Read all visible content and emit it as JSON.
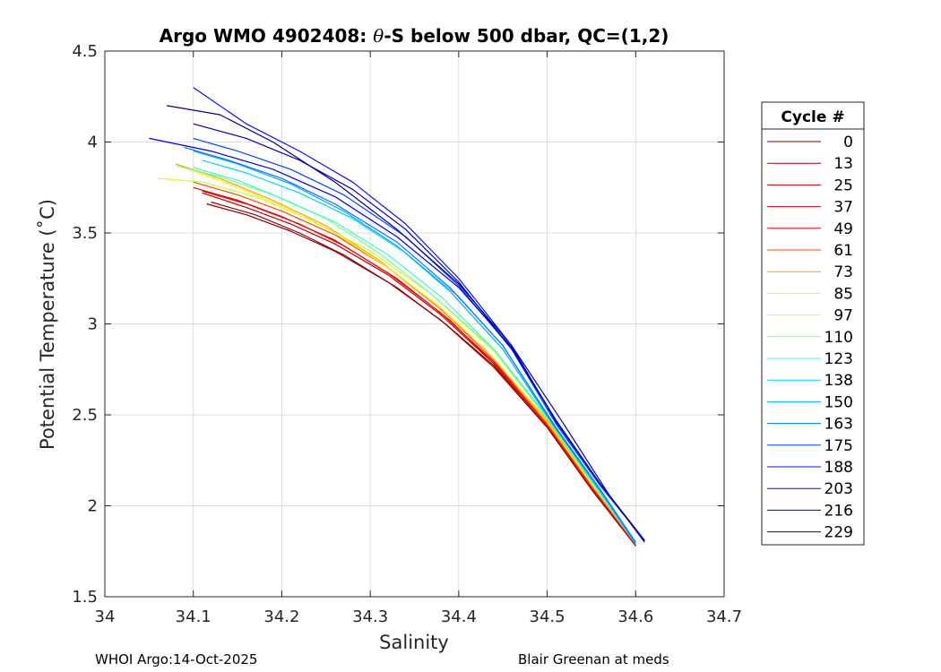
{
  "chart_data": {
    "type": "line",
    "title_prefix": "Argo WMO 4902408: ",
    "title_theta": "θ",
    "title_suffix": "-S below 500 dbar,  QC=(1,2)",
    "xlabel": "Salinity",
    "ylabel": "Potential Temperature (˚C)",
    "xlim": [
      34.0,
      34.7
    ],
    "ylim": [
      1.5,
      4.5
    ],
    "xticks": [
      34,
      34.1,
      34.2,
      34.3,
      34.4,
      34.5,
      34.6,
      34.7
    ],
    "xtick_labels": [
      "34",
      "34.1",
      "34.2",
      "34.3",
      "34.4",
      "34.5",
      "34.6",
      "34.7"
    ],
    "yticks": [
      1.5,
      2,
      2.5,
      3,
      3.5,
      4,
      4.5
    ],
    "ytick_labels": [
      "1.5",
      "2",
      "2.5",
      "3",
      "3.5",
      "4",
      "4.5"
    ],
    "grid": true,
    "colormap": "jet",
    "legend": {
      "title": "Cycle #",
      "placement": "right-outside",
      "entries": [
        {
          "label": "0",
          "color": "#800000"
        },
        {
          "label": "13",
          "color": "#9e0000"
        },
        {
          "label": "25",
          "color": "#bd0000"
        },
        {
          "label": "37",
          "color": "#db0000"
        },
        {
          "label": "49",
          "color": "#f90000"
        },
        {
          "label": "61",
          "color": "#ff4a00"
        },
        {
          "label": "73",
          "color": "#ffa200"
        },
        {
          "label": "85",
          "color": "#ffee00"
        },
        {
          "label": "97",
          "color": "#c8ff36"
        },
        {
          "label": "110",
          "color": "#7dff82"
        },
        {
          "label": "123",
          "color": "#33ffcc"
        },
        {
          "label": "138",
          "color": "#00d2ff"
        },
        {
          "label": "150",
          "color": "#00aaff"
        },
        {
          "label": "163",
          "color": "#0078ff"
        },
        {
          "label": "175",
          "color": "#0046ff"
        },
        {
          "label": "188",
          "color": "#0014ff"
        },
        {
          "label": "203",
          "color": "#0000e6"
        },
        {
          "label": "216",
          "color": "#0000b4"
        },
        {
          "label": "229",
          "color": "#00008c"
        }
      ]
    },
    "series": [
      {
        "name": "0",
        "color": "#800000",
        "x": [
          34.115,
          34.16,
          34.21,
          34.26,
          34.32,
          34.38,
          34.44,
          34.5,
          34.55,
          34.6
        ],
        "y": [
          3.66,
          3.6,
          3.51,
          3.4,
          3.23,
          3.02,
          2.76,
          2.43,
          2.09,
          1.78
        ]
      },
      {
        "name": "13",
        "color": "#9e0000",
        "x": [
          34.12,
          34.17,
          34.22,
          34.27,
          34.33,
          34.385,
          34.44,
          34.5,
          34.55,
          34.6
        ],
        "y": [
          3.67,
          3.6,
          3.5,
          3.38,
          3.2,
          3.0,
          2.77,
          2.44,
          2.1,
          1.79
        ]
      },
      {
        "name": "25",
        "color": "#bd0000",
        "x": [
          34.11,
          34.16,
          34.21,
          34.26,
          34.32,
          34.38,
          34.44,
          34.5,
          34.55,
          34.6
        ],
        "y": [
          3.72,
          3.64,
          3.55,
          3.44,
          3.27,
          3.05,
          2.78,
          2.44,
          2.1,
          1.78
        ]
      },
      {
        "name": "37",
        "color": "#db0000",
        "x": [
          34.1,
          34.15,
          34.2,
          34.26,
          34.32,
          34.38,
          34.44,
          34.5,
          34.55,
          34.6
        ],
        "y": [
          3.75,
          3.68,
          3.59,
          3.46,
          3.28,
          3.06,
          2.79,
          2.45,
          2.11,
          1.78
        ]
      },
      {
        "name": "49",
        "color": "#f90000",
        "x": [
          34.11,
          34.16,
          34.22,
          34.27,
          34.33,
          34.39,
          34.44,
          34.5,
          34.55,
          34.6
        ],
        "y": [
          3.73,
          3.66,
          3.55,
          3.43,
          3.25,
          3.02,
          2.78,
          2.44,
          2.1,
          1.79
        ]
      },
      {
        "name": "61",
        "color": "#ff4a00",
        "x": [
          34.1,
          34.15,
          34.2,
          34.26,
          34.32,
          34.38,
          34.44,
          34.5,
          34.55,
          34.6
        ],
        "y": [
          3.78,
          3.71,
          3.62,
          3.49,
          3.31,
          3.08,
          2.8,
          2.45,
          2.11,
          1.79
        ]
      },
      {
        "name": "73",
        "color": "#ffa200",
        "x": [
          34.08,
          34.13,
          34.19,
          34.25,
          34.31,
          34.37,
          34.43,
          34.5,
          34.55,
          34.6
        ],
        "y": [
          3.88,
          3.8,
          3.68,
          3.54,
          3.35,
          3.12,
          2.86,
          2.47,
          2.12,
          1.79
        ]
      },
      {
        "name": "85",
        "color": "#ffee00",
        "x": [
          34.09,
          34.14,
          34.2,
          34.26,
          34.32,
          34.38,
          34.44,
          34.5,
          34.55,
          34.6
        ],
        "y": [
          3.86,
          3.77,
          3.65,
          3.5,
          3.31,
          3.09,
          2.81,
          2.46,
          2.12,
          1.8
        ]
      },
      {
        "name": "97",
        "color": "#c8ff36",
        "x": [
          34.06,
          34.11,
          34.17,
          34.23,
          34.3,
          34.37,
          34.44,
          34.5,
          34.55,
          34.6
        ],
        "y": [
          3.8,
          3.78,
          3.7,
          3.58,
          3.4,
          3.16,
          2.85,
          2.48,
          2.13,
          1.8
        ]
      },
      {
        "name": "110",
        "color": "#7dff82",
        "x": [
          34.08,
          34.13,
          34.19,
          34.25,
          34.31,
          34.37,
          34.44,
          34.5,
          34.55,
          34.6
        ],
        "y": [
          3.87,
          3.81,
          3.71,
          3.58,
          3.39,
          3.16,
          2.86,
          2.48,
          2.13,
          1.79
        ]
      },
      {
        "name": "123",
        "color": "#33ffcc",
        "x": [
          34.1,
          34.15,
          34.2,
          34.26,
          34.32,
          34.38,
          34.44,
          34.5,
          34.55,
          34.6
        ],
        "y": [
          3.86,
          3.79,
          3.69,
          3.56,
          3.38,
          3.15,
          2.86,
          2.49,
          2.14,
          1.79
        ]
      },
      {
        "name": "138",
        "color": "#00d2ff",
        "x": [
          34.11,
          34.16,
          34.22,
          34.28,
          34.34,
          34.4,
          34.45,
          34.5,
          34.55,
          34.6
        ],
        "y": [
          3.9,
          3.83,
          3.72,
          3.58,
          3.39,
          3.15,
          2.88,
          2.5,
          2.15,
          1.8
        ]
      },
      {
        "name": "150",
        "color": "#00aaff",
        "x": [
          34.1,
          34.15,
          34.21,
          34.27,
          34.33,
          34.39,
          34.45,
          34.51,
          34.56,
          34.6
        ],
        "y": [
          3.95,
          3.88,
          3.77,
          3.62,
          3.43,
          3.18,
          2.86,
          2.42,
          2.08,
          1.79
        ]
      },
      {
        "name": "163",
        "color": "#0078ff",
        "x": [
          34.09,
          34.14,
          34.2,
          34.26,
          34.33,
          34.39,
          34.45,
          34.51,
          34.56,
          34.6
        ],
        "y": [
          3.97,
          3.9,
          3.8,
          3.66,
          3.45,
          3.2,
          2.88,
          2.43,
          2.09,
          1.8
        ]
      },
      {
        "name": "175",
        "color": "#0046ff",
        "x": [
          34.1,
          34.15,
          34.21,
          34.27,
          34.34,
          34.4,
          34.46,
          34.51,
          34.56,
          34.61
        ],
        "y": [
          4.02,
          3.95,
          3.85,
          3.71,
          3.48,
          3.21,
          2.86,
          2.45,
          2.11,
          1.81
        ]
      },
      {
        "name": "188",
        "color": "#0014ff",
        "x": [
          34.1,
          34.16,
          34.22,
          34.28,
          34.34,
          34.4,
          34.46,
          34.51,
          34.56,
          34.61
        ],
        "y": [
          4.3,
          4.1,
          3.95,
          3.78,
          3.55,
          3.25,
          2.88,
          2.46,
          2.12,
          1.81
        ]
      },
      {
        "name": "203",
        "color": "#0000e6",
        "x": [
          34.05,
          34.12,
          34.19,
          34.26,
          34.33,
          34.4,
          34.46,
          34.51,
          34.56,
          34.61
        ],
        "y": [
          4.02,
          3.95,
          3.85,
          3.7,
          3.48,
          3.2,
          2.87,
          2.47,
          2.12,
          1.81
        ]
      },
      {
        "name": "216",
        "color": "#0000b4",
        "x": [
          34.1,
          34.16,
          34.22,
          34.28,
          34.34,
          34.4,
          34.46,
          34.51,
          34.56,
          34.61
        ],
        "y": [
          4.1,
          4.02,
          3.9,
          3.74,
          3.52,
          3.23,
          2.86,
          2.47,
          2.12,
          1.81
        ]
      },
      {
        "name": "229",
        "color": "#00008c",
        "x": [
          34.07,
          34.13,
          34.19,
          34.26,
          34.33,
          34.4,
          34.46,
          34.52,
          34.57,
          34.61
        ],
        "y": [
          4.2,
          4.15,
          4.0,
          3.78,
          3.52,
          3.22,
          2.88,
          2.44,
          2.06,
          1.8
        ]
      }
    ]
  },
  "footer": {
    "left": "WHOI Argo:14-Oct-2025",
    "right": "Blair Greenan at meds"
  }
}
